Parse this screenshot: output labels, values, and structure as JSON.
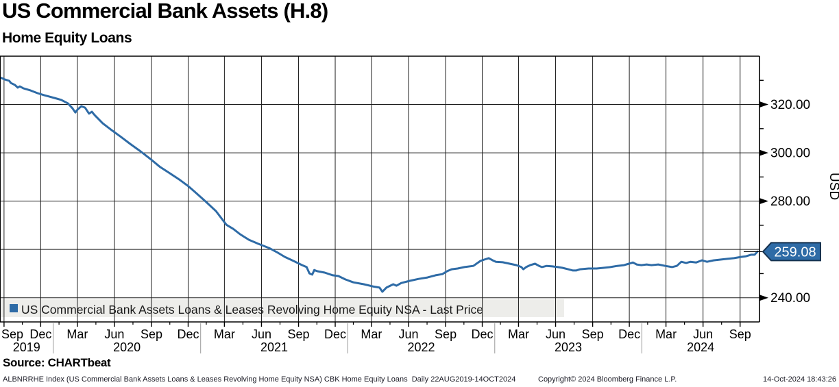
{
  "header": {
    "title": "US Commercial Bank Assets (H.8)",
    "subtitle": "Home Equity Loans"
  },
  "footer": {
    "source": "Source: CHARTbeat",
    "disclaimer": "ALBNRRHE Index (US Commercial Bank Assets Loans & Leases Revolving Home Equity NSA) CBK Home Equity Loans  Daily 22AUG2019-14OCT2024",
    "copyright": "Copyright© 2024 Bloomberg Finance L.P.",
    "timestamp": "14-Oct-2024 18:43:26"
  },
  "chart_data": {
    "type": "line",
    "title": "US Commercial Bank Assets (H.8)",
    "subtitle": "Home Equity Loans",
    "ylabel": "USD",
    "ylim": [
      230,
      340
    ],
    "x_range": [
      "2019-08-22",
      "2024-10-14"
    ],
    "colors": {
      "line": "#2e6ba6",
      "tag_fill": "#2e6ba6",
      "tag_border": "#16324f",
      "tag_text": "#ffffff",
      "grid": "#1c1c1c",
      "axis": "#000000",
      "legend_bg": "#ededea",
      "year_separator": "#999999"
    },
    "y_axis": {
      "label": "USD",
      "major_ticks": [
        {
          "value": 320,
          "label": "320.00"
        },
        {
          "value": 300,
          "label": "300.00"
        },
        {
          "value": 280,
          "label": "280.00"
        },
        {
          "value": 240,
          "label": "240.00"
        }
      ],
      "minor_ticks": [
        330,
        310,
        290,
        270,
        250
      ],
      "gridlines": [
        320,
        300,
        280,
        260,
        240
      ]
    },
    "x_axis": {
      "quarter_ticks": [
        {
          "date": "2019-09-01",
          "label": "Sep"
        },
        {
          "date": "2019-12-01",
          "label": "Dec"
        },
        {
          "date": "2020-03-01",
          "label": "Mar"
        },
        {
          "date": "2020-06-01",
          "label": "Jun"
        },
        {
          "date": "2020-09-01",
          "label": "Sep"
        },
        {
          "date": "2020-12-01",
          "label": "Dec"
        },
        {
          "date": "2021-03-01",
          "label": "Mar"
        },
        {
          "date": "2021-06-01",
          "label": "Jun"
        },
        {
          "date": "2021-09-01",
          "label": "Sep"
        },
        {
          "date": "2021-12-01",
          "label": "Dec"
        },
        {
          "date": "2022-03-01",
          "label": "Mar"
        },
        {
          "date": "2022-06-01",
          "label": "Jun"
        },
        {
          "date": "2022-09-01",
          "label": "Sep"
        },
        {
          "date": "2022-12-01",
          "label": "Dec"
        },
        {
          "date": "2023-03-01",
          "label": "Mar"
        },
        {
          "date": "2023-06-01",
          "label": "Jun"
        },
        {
          "date": "2023-09-01",
          "label": "Sep"
        },
        {
          "date": "2023-12-01",
          "label": "Dec"
        },
        {
          "date": "2024-03-01",
          "label": "Mar"
        },
        {
          "date": "2024-06-01",
          "label": "Jun"
        },
        {
          "date": "2024-09-01",
          "label": "Sep"
        }
      ],
      "year_separators": [
        "2020-01-01",
        "2021-01-01",
        "2022-01-01",
        "2023-01-01",
        "2024-01-01"
      ],
      "year_labels": [
        "2019",
        "2020",
        "2021",
        "2022",
        "2023",
        "2024"
      ]
    },
    "last_price": {
      "value": 259.08,
      "label": "259.08"
    },
    "legend": [
      {
        "label": "US Commercial Bank Assets Loans & Leases Revolving Home Equity NSA - Last Price",
        "color": "#2e6ba6"
      }
    ],
    "series": [
      {
        "name": "US Commercial Bank Assets Loans & Leases Revolving Home Equity NSA - Last Price",
        "color": "#2e6ba6",
        "points": [
          [
            "2019-08-22",
            331.2
          ],
          [
            "2019-09-04",
            330.3
          ],
          [
            "2019-09-14",
            329.8
          ],
          [
            "2019-09-18",
            328.9
          ],
          [
            "2019-09-28",
            328.1
          ],
          [
            "2019-10-05",
            327.0
          ],
          [
            "2019-10-10",
            327.5
          ],
          [
            "2019-10-19",
            326.7
          ],
          [
            "2019-11-06",
            325.8
          ],
          [
            "2019-11-23",
            324.7
          ],
          [
            "2019-12-10",
            323.8
          ],
          [
            "2019-12-22",
            323.3
          ],
          [
            "2020-01-04",
            322.7
          ],
          [
            "2020-01-21",
            321.9
          ],
          [
            "2020-02-07",
            320.4
          ],
          [
            "2020-02-18",
            318.4
          ],
          [
            "2020-02-25",
            316.7
          ],
          [
            "2020-03-01",
            317.8
          ],
          [
            "2020-03-11",
            319.3
          ],
          [
            "2020-03-20",
            318.7
          ],
          [
            "2020-03-30",
            316.2
          ],
          [
            "2020-04-06",
            317.0
          ],
          [
            "2020-04-13",
            315.6
          ],
          [
            "2020-05-03",
            312.2
          ],
          [
            "2020-05-25",
            309.4
          ],
          [
            "2020-06-18",
            306.5
          ],
          [
            "2020-07-10",
            303.7
          ],
          [
            "2020-08-05",
            300.6
          ],
          [
            "2020-08-29",
            297.5
          ],
          [
            "2020-09-21",
            294.3
          ],
          [
            "2020-10-17",
            291.5
          ],
          [
            "2020-11-11",
            288.7
          ],
          [
            "2020-12-02",
            286.1
          ],
          [
            "2020-12-19",
            283.6
          ],
          [
            "2021-01-13",
            279.9
          ],
          [
            "2021-02-08",
            275.9
          ],
          [
            "2021-03-06",
            270.2
          ],
          [
            "2021-03-23",
            268.5
          ],
          [
            "2021-04-09",
            266.3
          ],
          [
            "2021-05-01",
            264.0
          ],
          [
            "2021-05-25",
            262.3
          ],
          [
            "2021-06-20",
            260.6
          ],
          [
            "2021-07-12",
            258.6
          ],
          [
            "2021-07-29",
            256.9
          ],
          [
            "2021-08-20",
            255.2
          ],
          [
            "2021-09-10",
            253.5
          ],
          [
            "2021-09-21",
            252.7
          ],
          [
            "2021-09-28",
            250.1
          ],
          [
            "2021-10-05",
            249.6
          ],
          [
            "2021-10-10",
            251.5
          ],
          [
            "2021-10-17",
            251.0
          ],
          [
            "2021-11-05",
            250.4
          ],
          [
            "2021-11-25",
            249.3
          ],
          [
            "2021-12-09",
            249.0
          ],
          [
            "2021-12-26",
            247.6
          ],
          [
            "2022-01-15",
            246.4
          ],
          [
            "2022-02-10",
            245.6
          ],
          [
            "2022-03-04",
            244.7
          ],
          [
            "2022-03-21",
            244.2
          ],
          [
            "2022-03-28",
            242.5
          ],
          [
            "2022-04-07",
            244.2
          ],
          [
            "2022-04-24",
            245.6
          ],
          [
            "2022-05-02",
            245.0
          ],
          [
            "2022-05-14",
            246.1
          ],
          [
            "2022-06-04",
            247.0
          ],
          [
            "2022-06-26",
            247.8
          ],
          [
            "2022-07-18",
            248.4
          ],
          [
            "2022-08-07",
            249.3
          ],
          [
            "2022-08-24",
            249.8
          ],
          [
            "2022-09-05",
            251.0
          ],
          [
            "2022-09-16",
            251.8
          ],
          [
            "2022-10-01",
            252.1
          ],
          [
            "2022-10-18",
            252.7
          ],
          [
            "2022-11-09",
            253.2
          ],
          [
            "2022-11-26",
            255.2
          ],
          [
            "2022-12-06",
            255.8
          ],
          [
            "2022-12-17",
            256.4
          ],
          [
            "2022-12-27",
            255.5
          ],
          [
            "2023-01-04",
            254.9
          ],
          [
            "2023-01-21",
            254.7
          ],
          [
            "2023-02-07",
            254.1
          ],
          [
            "2023-02-24",
            253.5
          ],
          [
            "2023-03-08",
            252.7
          ],
          [
            "2023-03-13",
            251.8
          ],
          [
            "2023-03-20",
            252.7
          ],
          [
            "2023-03-30",
            253.5
          ],
          [
            "2023-04-11",
            254.1
          ],
          [
            "2023-04-21",
            253.2
          ],
          [
            "2023-04-28",
            252.7
          ],
          [
            "2023-05-10",
            253.2
          ],
          [
            "2023-05-24",
            253.0
          ],
          [
            "2023-06-06",
            252.7
          ],
          [
            "2023-06-18",
            252.4
          ],
          [
            "2023-07-02",
            251.8
          ],
          [
            "2023-07-14",
            251.3
          ],
          [
            "2023-07-22",
            251.3
          ],
          [
            "2023-08-01",
            251.8
          ],
          [
            "2023-08-22",
            252.1
          ],
          [
            "2023-09-11",
            252.1
          ],
          [
            "2023-09-28",
            252.4
          ],
          [
            "2023-10-15",
            252.7
          ],
          [
            "2023-11-01",
            253.2
          ],
          [
            "2023-11-18",
            253.5
          ],
          [
            "2023-11-30",
            254.1
          ],
          [
            "2023-12-10",
            254.6
          ],
          [
            "2023-12-19",
            253.8
          ],
          [
            "2023-12-31",
            253.5
          ],
          [
            "2024-01-13",
            253.8
          ],
          [
            "2024-01-25",
            253.5
          ],
          [
            "2024-02-11",
            253.8
          ],
          [
            "2024-02-28",
            253.2
          ],
          [
            "2024-03-16",
            252.7
          ],
          [
            "2024-03-28",
            253.2
          ],
          [
            "2024-04-08",
            254.9
          ],
          [
            "2024-04-20",
            254.4
          ],
          [
            "2024-05-01",
            254.9
          ],
          [
            "2024-05-15",
            254.6
          ],
          [
            "2024-05-29",
            255.5
          ],
          [
            "2024-06-11",
            254.9
          ],
          [
            "2024-06-27",
            255.5
          ],
          [
            "2024-07-14",
            255.8
          ],
          [
            "2024-07-31",
            256.1
          ],
          [
            "2024-08-17",
            256.4
          ],
          [
            "2024-09-03",
            256.9
          ],
          [
            "2024-09-16",
            257.2
          ],
          [
            "2024-09-28",
            257.8
          ],
          [
            "2024-10-07",
            257.8
          ],
          [
            "2024-10-14",
            259.08
          ]
        ]
      }
    ]
  }
}
